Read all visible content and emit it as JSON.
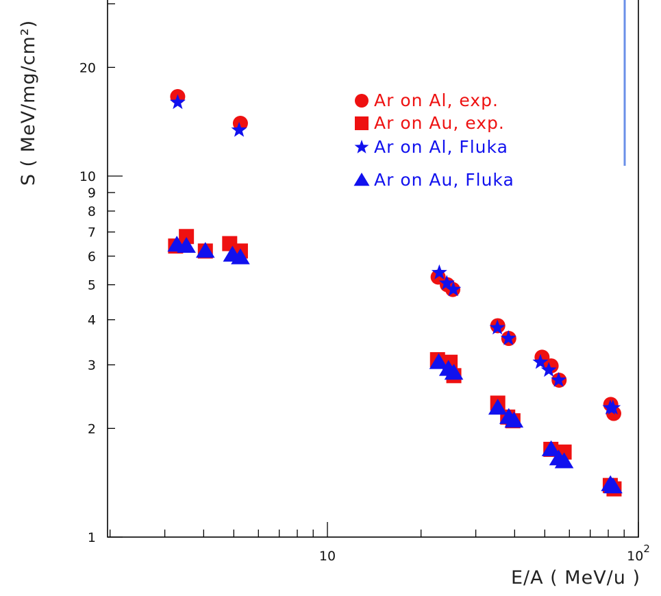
{
  "chart_data": {
    "type": "scatter",
    "title": "",
    "xlabel": "E/A ( MeV/u )",
    "ylabel": "S ( MeV/mg/cm²)",
    "xscale": "log",
    "yscale": "log",
    "xlim": [
      2,
      100
    ],
    "ylim": [
      1,
      30
    ],
    "grid": false,
    "legend_position": "upper-center",
    "x_tick_labels": [
      {
        "value": 10,
        "base": "10",
        "exp": ""
      },
      {
        "value": 100,
        "base": "10",
        "exp": "2"
      }
    ],
    "y_tick_labels": [
      {
        "value": 1,
        "label": "1"
      },
      {
        "value": 2,
        "label": "2"
      },
      {
        "value": 3,
        "label": "3"
      },
      {
        "value": 4,
        "label": "4"
      },
      {
        "value": 5,
        "label": "5"
      },
      {
        "value": 6,
        "label": "6"
      },
      {
        "value": 7,
        "label": "7"
      },
      {
        "value": 8,
        "label": "8"
      },
      {
        "value": 9,
        "label": "9"
      },
      {
        "value": 10,
        "label": "10"
      },
      {
        "value": 20,
        "label": "20"
      }
    ],
    "series": [
      {
        "name": "Ar on Al, exp.",
        "marker": "circle",
        "color": "#ee1111",
        "points": [
          [
            3.3,
            16.6
          ],
          [
            5.25,
            14.0
          ],
          [
            22.7,
            5.25
          ],
          [
            24.3,
            5.0
          ],
          [
            25.3,
            4.85
          ],
          [
            35.3,
            3.85
          ],
          [
            38.3,
            3.55
          ],
          [
            49.0,
            3.15
          ],
          [
            52.4,
            2.98
          ],
          [
            55.6,
            2.72
          ],
          [
            81.5,
            2.33
          ],
          [
            83.3,
            2.2
          ]
        ]
      },
      {
        "name": "Ar on Au, exp.",
        "marker": "square",
        "color": "#ee1111",
        "points": [
          [
            3.25,
            6.4
          ],
          [
            3.52,
            6.8
          ],
          [
            4.05,
            6.2
          ],
          [
            4.85,
            6.5
          ],
          [
            5.25,
            6.2
          ],
          [
            22.6,
            3.1
          ],
          [
            24.8,
            3.05
          ],
          [
            25.5,
            2.8
          ],
          [
            35.3,
            2.35
          ],
          [
            38.0,
            2.15
          ],
          [
            39.5,
            2.1
          ],
          [
            52.3,
            1.75
          ],
          [
            57.7,
            1.72
          ],
          [
            81.2,
            1.39
          ],
          [
            83.5,
            1.36
          ]
        ]
      },
      {
        "name": "Ar on Al, Fluka",
        "marker": "star",
        "color": "#1111ee",
        "points": [
          [
            3.3,
            16.0
          ],
          [
            5.2,
            13.4
          ],
          [
            22.9,
            5.4
          ],
          [
            24.2,
            5.05
          ],
          [
            25.4,
            4.85
          ],
          [
            35.2,
            3.8
          ],
          [
            38.2,
            3.55
          ],
          [
            48.4,
            3.05
          ],
          [
            51.5,
            2.9
          ],
          [
            55.4,
            2.72
          ],
          [
            81.2,
            2.28
          ],
          [
            82.8,
            2.28
          ]
        ]
      },
      {
        "name": "Ar on Au, Fluka",
        "marker": "triangle",
        "color": "#1111ee",
        "points": [
          [
            3.28,
            6.45
          ],
          [
            3.52,
            6.4
          ],
          [
            4.05,
            6.2
          ],
          [
            4.95,
            6.05
          ],
          [
            5.25,
            5.95
          ],
          [
            22.8,
            3.05
          ],
          [
            24.5,
            2.92
          ],
          [
            25.5,
            2.85
          ],
          [
            35.3,
            2.28
          ],
          [
            38.3,
            2.15
          ],
          [
            39.8,
            2.1
          ],
          [
            52.4,
            1.75
          ],
          [
            55.4,
            1.65
          ],
          [
            57.7,
            1.62
          ],
          [
            81.3,
            1.4
          ],
          [
            82.9,
            1.38
          ]
        ]
      }
    ]
  }
}
